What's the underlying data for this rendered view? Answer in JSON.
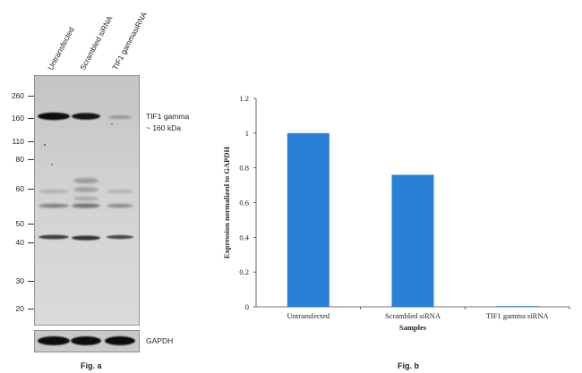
{
  "blot": {
    "lanes": [
      "Untransfected",
      "Scrambled siRNA",
      "TIF1 gammasiRNA"
    ],
    "mw_markers": [
      "260",
      "160",
      "110",
      "80",
      "60",
      "50",
      "40",
      "30",
      "20"
    ],
    "band_label_line1": "TIF1 gamma",
    "band_label_line2": "~ 160 kDa",
    "loading_label": "GAPDH",
    "fig_label": "Fig. a"
  },
  "fig_b_label": "Fig. b",
  "chart_data": {
    "type": "bar",
    "categories": [
      "Untransfected",
      "Scrambled siRNA",
      "TIF1 gamma siRNA"
    ],
    "values": [
      1.0,
      0.76,
      0.0
    ],
    "xlabel": "Samples",
    "ylabel": "Expression normalized to GAPDH",
    "ylim": [
      0,
      1.2
    ],
    "yticks": [
      "0",
      "0.2",
      "0.4",
      "0.6",
      "0.8",
      "1",
      "1.2"
    ],
    "bar_color": "#2a7fd6",
    "grid": false,
    "legend": "none"
  }
}
